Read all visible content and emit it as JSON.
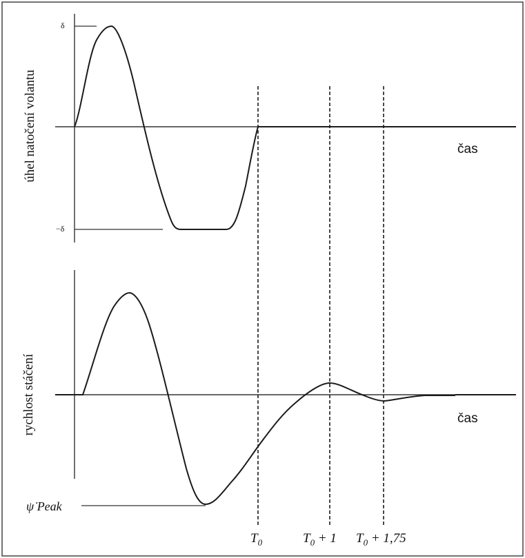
{
  "top_plot": {
    "y_axis_label": "úhel natočení volantu",
    "x_axis_label": "čas",
    "tick_max": "δ",
    "tick_min": "−δ"
  },
  "bottom_plot": {
    "y_axis_label": "rychlost stáčení",
    "x_axis_label": "čas",
    "peak_symbol": "ψ̇",
    "peak_text": "Peak"
  },
  "time_markers": [
    {
      "base": "T",
      "sub": "0",
      "suffix": ""
    },
    {
      "base": "T",
      "sub": "0",
      "suffix": " + 1"
    },
    {
      "base": "T",
      "sub": "0",
      "suffix": " + 1,75"
    }
  ],
  "colors": {
    "line": "#1a1a1a",
    "axis": "#333333",
    "frame": "#444444"
  }
}
